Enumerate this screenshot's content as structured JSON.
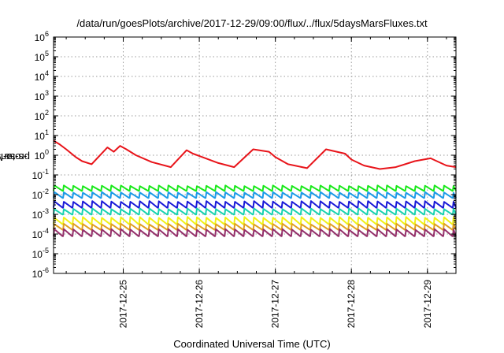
{
  "chart_data": {
    "type": "line",
    "title": "/data/run/goesPlots/archive/2017-12-29/09:00/flux/../flux/5daysMarsFluxes.txt",
    "xlabel": "Coordinated Universal Time (UTC)",
    "ylabel": {
      "pre": "protons/cm",
      "sup": "2",
      "post": "-s-sr-MeV"
    },
    "yscale": "log",
    "ylim": [
      1e-06,
      1000000.0
    ],
    "xlim": [
      "2017-12-24T02:00",
      "2017-12-29T09:00"
    ],
    "grid": true,
    "x_ticks": [
      "2017-12-25",
      "2017-12-26",
      "2017-12-27",
      "2017-12-28",
      "2017-12-29"
    ],
    "y_ticks": [
      {
        "base": "10",
        "exp": "6"
      },
      {
        "base": "10",
        "exp": "5"
      },
      {
        "base": "10",
        "exp": "4"
      },
      {
        "base": "10",
        "exp": "3"
      },
      {
        "base": "10",
        "exp": "2"
      },
      {
        "base": "10",
        "exp": "1"
      },
      {
        "base": "10",
        "exp": "0"
      },
      {
        "base": "10",
        "exp": "-1"
      },
      {
        "base": "10",
        "exp": "-2"
      },
      {
        "base": "10",
        "exp": "-3"
      },
      {
        "base": "10",
        "exp": "-4"
      },
      {
        "base": "10",
        "exp": "-5"
      },
      {
        "base": "10",
        "exp": "-6"
      }
    ],
    "series": [
      {
        "color": "#e8141a",
        "x": [
          "2017-12-24T02:00",
          "2017-12-24T04:00",
          "2017-12-24T06:00",
          "2017-12-24T09:00",
          "2017-12-24T11:00",
          "2017-12-24T14:00",
          "2017-12-24T19:00",
          "2017-12-24T21:00",
          "2017-12-24T23:00",
          "2017-12-25T01:00",
          "2017-12-25T04:00",
          "2017-12-25T09:00",
          "2017-12-25T15:00",
          "2017-12-25T20:00",
          "2017-12-25T22:00",
          "2017-12-26T01:00",
          "2017-12-26T06:00",
          "2017-12-26T11:00",
          "2017-12-26T17:00",
          "2017-12-26T22:00",
          "2017-12-27T00:00",
          "2017-12-27T04:00",
          "2017-12-27T10:00",
          "2017-12-27T16:00",
          "2017-12-27T22:00",
          "2017-12-28T00:00",
          "2017-12-28T04:00",
          "2017-12-28T09:00",
          "2017-12-28T14:00",
          "2017-12-28T20:00",
          "2017-12-29T01:00",
          "2017-12-29T06:00",
          "2017-12-29T09:00"
        ],
        "y": [
          5.5,
          3.5,
          2.0,
          0.8,
          0.5,
          0.35,
          2.5,
          1.5,
          3.0,
          2.0,
          1.0,
          0.45,
          0.25,
          1.8,
          1.2,
          0.8,
          0.4,
          0.25,
          2.0,
          1.5,
          0.8,
          0.35,
          0.22,
          2.0,
          1.2,
          0.6,
          0.3,
          0.2,
          0.25,
          0.5,
          0.7,
          0.3,
          0.25
        ]
      },
      {
        "color": "#19e81a",
        "base": 0.02,
        "amp": 0.008
      },
      {
        "color": "#1a9ae8",
        "base": 0.009,
        "amp": 0.004
      },
      {
        "color": "#1a1ad8",
        "base": 0.003,
        "amp": 0.0015
      },
      {
        "color": "#18d2b0",
        "base": 0.0013,
        "amp": 0.0006
      },
      {
        "color": "#f0f018",
        "base": 0.00045,
        "amp": 0.00025
      },
      {
        "color": "#e0a020",
        "base": 0.00022,
        "amp": 0.0001
      },
      {
        "color": "#94306a",
        "base": 0.00011,
        "amp": 6e-05
      }
    ]
  }
}
